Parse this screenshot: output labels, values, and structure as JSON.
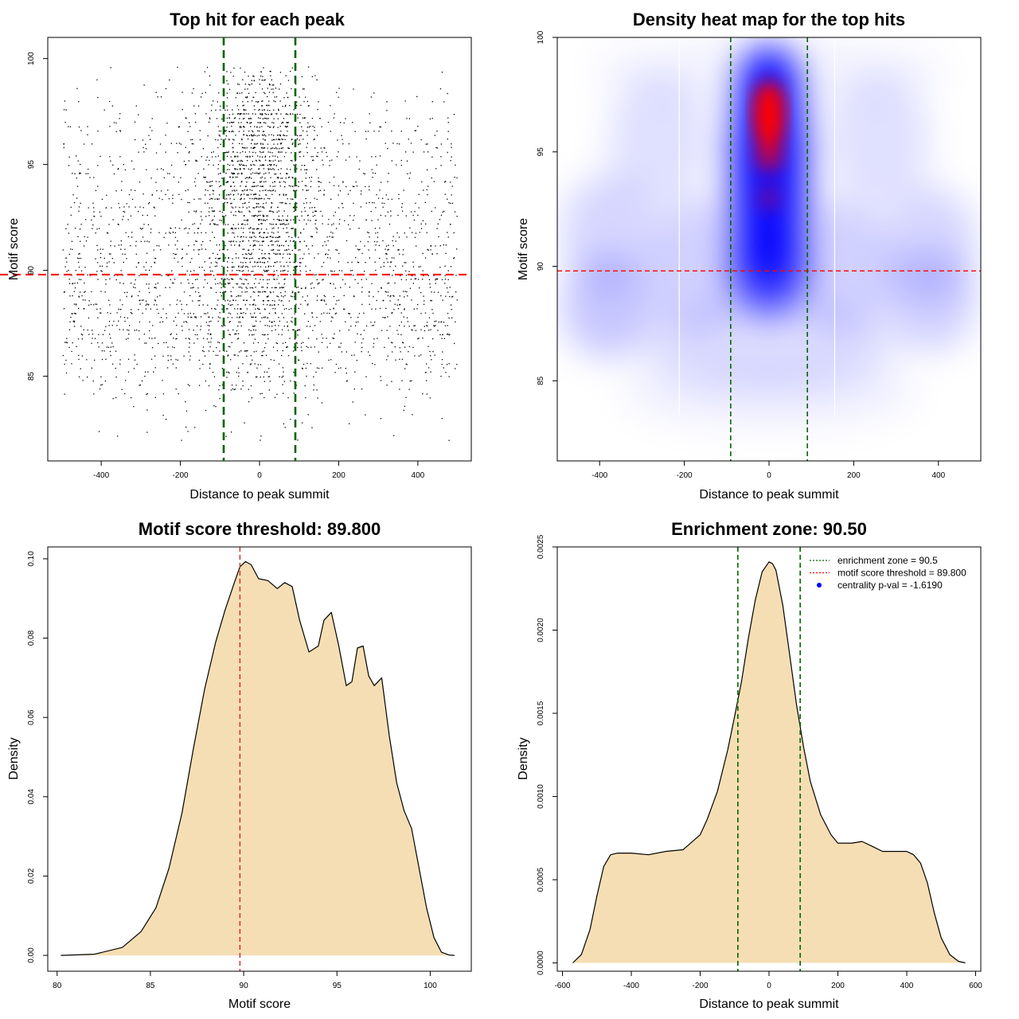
{
  "colors": {
    "threshold_red": "#ff0000",
    "zone_green": "#006400",
    "fill_wheat": "#f5deb3",
    "heat_low": "#ffffff",
    "heat_mid": "#0000ff",
    "heat_high": "#ff0000"
  },
  "chart_data": [
    {
      "type": "scatter",
      "title": "Top hit for each peak",
      "xlabel": "Distance to peak summit",
      "ylabel": "Motif score",
      "xlim": [
        -535,
        535
      ],
      "ylim": [
        81,
        101
      ],
      "xticks": [
        -400,
        -200,
        0,
        200,
        400
      ],
      "yticks": [
        85,
        90,
        95,
        100
      ],
      "hline": 89.8,
      "vlines": [
        -90.5,
        90.5
      ],
      "point_color": "#000000",
      "points_note": "Several thousand points spread over x = -500..500, y = 82..100, denser at high scores and near x = 0"
    },
    {
      "type": "heatmap",
      "title": "Density heat map for the top hits",
      "xlabel": "Distance to peak summit",
      "ylabel": "Motif score",
      "xlim": [
        -500,
        500
      ],
      "ylim": [
        81.5,
        100
      ],
      "xticks": [
        -400,
        -200,
        0,
        200,
        400
      ],
      "yticks": [
        85,
        90,
        95,
        100
      ],
      "hline": 89.8,
      "vlines": [
        -90.5,
        90.5
      ],
      "white_vlines": [
        -212,
        155
      ],
      "colormap": [
        "#ffffff",
        "#0000ff",
        "#ff0000"
      ]
    },
    {
      "type": "area",
      "title": "Motif score threshold: 89.800",
      "xlabel": "Motif score",
      "ylabel": "Density",
      "xlim": [
        79.5,
        102.2
      ],
      "ylim": [
        -0.004,
        0.103
      ],
      "xticks": [
        80,
        85,
        90,
        95,
        100
      ],
      "yticks": [
        0.0,
        0.02,
        0.04,
        0.06,
        0.08,
        0.1
      ],
      "ytick_labels": [
        "0.00",
        "0.02",
        "0.04",
        "0.06",
        "0.08",
        "0.10"
      ],
      "vline": 89.8,
      "x": [
        80.2,
        82,
        83.5,
        84.5,
        85.3,
        86,
        86.7,
        87.3,
        87.9,
        88.5,
        89,
        89.5,
        89.8,
        90.1,
        90.4,
        90.8,
        91.3,
        91.8,
        92.2,
        92.6,
        93,
        93.5,
        94,
        94.3,
        94.7,
        95.1,
        95.5,
        95.8,
        96.1,
        96.4,
        96.7,
        97,
        97.4,
        97.8,
        98.2,
        98.6,
        99,
        99.4,
        99.8,
        100.2,
        100.6,
        101,
        101.3
      ],
      "y": [
        0.0,
        0.0003,
        0.002,
        0.006,
        0.012,
        0.022,
        0.036,
        0.052,
        0.067,
        0.079,
        0.087,
        0.094,
        0.098,
        0.0993,
        0.0985,
        0.095,
        0.0945,
        0.0925,
        0.094,
        0.093,
        0.0845,
        0.0765,
        0.078,
        0.0845,
        0.0865,
        0.078,
        0.068,
        0.069,
        0.0775,
        0.078,
        0.0705,
        0.068,
        0.07,
        0.0555,
        0.0435,
        0.0365,
        0.032,
        0.022,
        0.012,
        0.0045,
        0.0008,
        0.0001,
        0.0
      ]
    },
    {
      "type": "area",
      "title": "Enrichment zone: 90.50",
      "xlabel": "Distance to peak summit",
      "ylabel": "Density",
      "xlim": [
        -615,
        615
      ],
      "ylim": [
        -5e-05,
        0.0025
      ],
      "xticks": [
        -600,
        -400,
        -200,
        0,
        200,
        400,
        600
      ],
      "yticks": [
        0.0,
        0.0005,
        0.001,
        0.0015,
        0.002,
        0.0025
      ],
      "ytick_labels": [
        "0.0000",
        "0.0005",
        "0.0010",
        "0.0015",
        "0.0020",
        "0.0025"
      ],
      "vlines": [
        -90.5,
        90.5
      ],
      "x": [
        -570,
        -545,
        -520,
        -500,
        -480,
        -460,
        -440,
        -420,
        -400,
        -350,
        -300,
        -250,
        -200,
        -180,
        -150,
        -120,
        -100,
        -80,
        -60,
        -40,
        -20,
        0,
        10,
        20,
        40,
        60,
        80,
        100,
        120,
        150,
        180,
        200,
        240,
        270,
        300,
        330,
        360,
        400,
        420,
        440,
        460,
        480,
        500,
        525,
        550,
        570
      ],
      "y": [
        0.0,
        5e-05,
        0.0002,
        0.0004,
        0.00058,
        0.00065,
        0.00066,
        0.00066,
        0.00066,
        0.00065,
        0.00067,
        0.00068,
        0.00077,
        0.00086,
        0.00103,
        0.00128,
        0.00148,
        0.00169,
        0.00195,
        0.00218,
        0.00235,
        0.00241,
        0.0024,
        0.00236,
        0.00215,
        0.00185,
        0.00155,
        0.0013,
        0.00109,
        0.00089,
        0.00077,
        0.00072,
        0.00072,
        0.00073,
        0.0007,
        0.00067,
        0.00067,
        0.00067,
        0.00065,
        0.0006,
        0.00048,
        0.0003,
        0.00015,
        5e-05,
        1e-05,
        0.0
      ],
      "legend": [
        {
          "label": "enrichment zone = 90.5",
          "style": "dotted",
          "color": "#006400"
        },
        {
          "label": "motif score threshold = 89.800",
          "style": "dotted",
          "color": "#ff0000"
        },
        {
          "label": "centrality p-val = -1.6190",
          "style": "dot",
          "color": "#0000ff"
        }
      ],
      "legend_position": "top-right"
    }
  ]
}
